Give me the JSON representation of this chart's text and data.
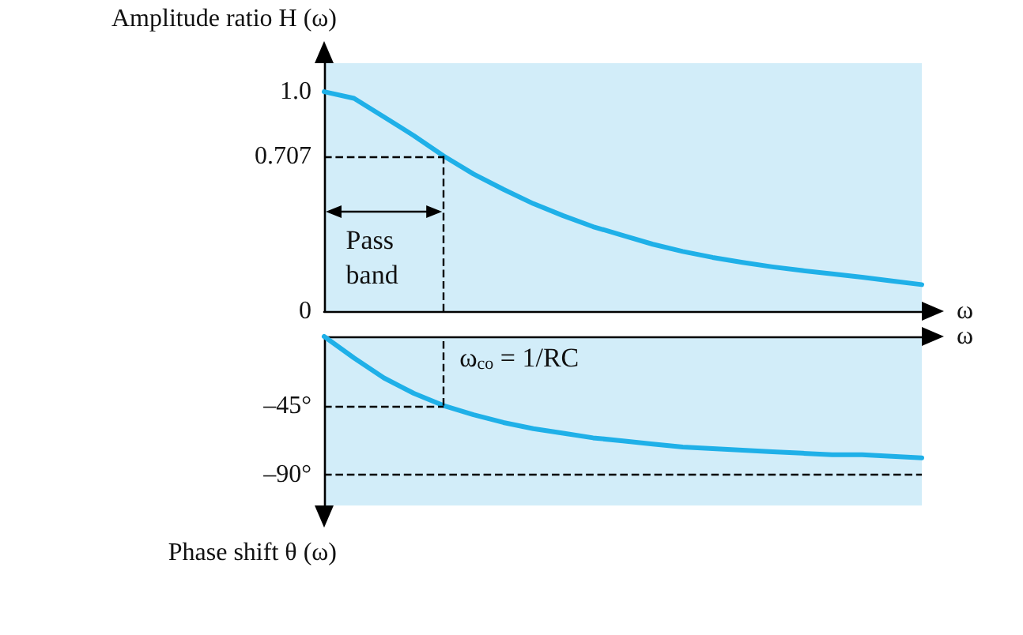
{
  "chart_data": [
    {
      "type": "line",
      "ylabel": "Amplitude ratio H (ω)",
      "xlabel": "ω",
      "categories": [
        null,
        null,
        null,
        null,
        null,
        null,
        null,
        null,
        null,
        null,
        null,
        null,
        null,
        null,
        null,
        null,
        null,
        null,
        null,
        null,
        null
      ],
      "series": [
        {
          "color": "#1fb0e8",
          "values": [
            1.0,
            0.97,
            0.885,
            0.8,
            0.707,
            0.625,
            0.555,
            0.49,
            0.435,
            0.385,
            0.345,
            0.305,
            0.272,
            0.245,
            0.222,
            0.202,
            0.185,
            0.17,
            0.155,
            0.138,
            0.121
          ]
        }
      ],
      "ylim": [
        0,
        1.13
      ],
      "yticks": [
        0,
        0.707,
        {
          "value": 1,
          "label": "1.0"
        }
      ],
      "tick_labels": "y",
      "grid": false,
      "marker": "none",
      "line_style": "solid",
      "ref_lines": [
        {
          "axis": "y",
          "value": 0.707,
          "line_style": "dashed",
          "color": "#000000"
        }
      ],
      "annotations": [
        "Pass band"
      ]
    },
    {
      "type": "line",
      "ylabel": "Phase shift θ (ω)",
      "xlabel": "ω",
      "categories": [
        null,
        null,
        null,
        null,
        null,
        null,
        null,
        null,
        null,
        null,
        null,
        null,
        null,
        null,
        null,
        null,
        null,
        null,
        null,
        null,
        null
      ],
      "series": [
        {
          "color": "#1fb0e8",
          "values": [
            0,
            -14,
            -27,
            -37,
            -45,
            -51,
            -56,
            -60,
            -63,
            -66,
            -68,
            -70,
            -72,
            -73,
            -74,
            -75,
            -76,
            -77,
            -77,
            -78,
            -79
          ]
        }
      ],
      "ylim": [
        -110,
        0
      ],
      "yticks": [
        {
          "value": -45,
          "label": "–45°"
        },
        {
          "value": -90,
          "label": "–90°"
        }
      ],
      "tick_labels": "y",
      "grid": false,
      "marker": "none",
      "line_style": "solid",
      "ref_lines": [
        {
          "axis": "y",
          "value": -45,
          "line_style": "dashed",
          "color": "#000000"
        },
        {
          "axis": "y",
          "value": -90,
          "line_style": "dashed",
          "color": "#000000"
        }
      ],
      "annotations": [
        "ω$_{co}$ = 1/RC"
      ]
    }
  ]
}
